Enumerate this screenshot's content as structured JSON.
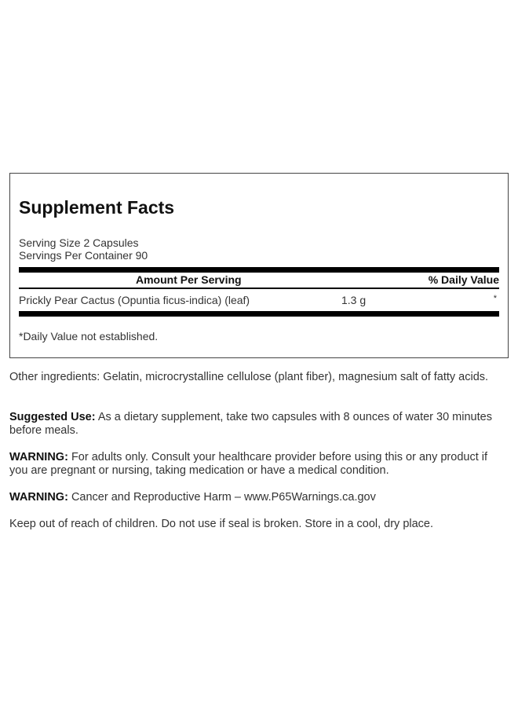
{
  "facts": {
    "title": "Supplement Facts",
    "serving_size": "Serving Size 2 Capsules",
    "servings_per_container": "Servings Per Container 90",
    "col_amount": "Amount Per Serving",
    "col_dv": "% Daily Value",
    "rows": [
      {
        "name": "Prickly Pear Cactus (Opuntia ficus-indica) (leaf)",
        "amount": "1.3 g",
        "dv": "*"
      }
    ],
    "footnote": "*Daily Value not established."
  },
  "info": {
    "other_ingredients": "Other ingredients: Gelatin, microcrystalline cellulose (plant fiber), magnesium salt of fatty acids.",
    "suggested_label": "Suggested Use:",
    "suggested_text": " As a dietary supplement, take two capsules with 8 ounces of water 30 minutes before meals.",
    "warning1_label": "WARNING:",
    "warning1_text": " For adults only. Consult your healthcare provider before using this or any product if you are pregnant or nursing, taking medication or have a medical condition.",
    "warning2_label": "WARNING:",
    "warning2_text": " Cancer and Reproductive Harm – www.P65Warnings.ca.gov",
    "storage": "Keep out of reach of children. Do not use if seal is broken. Store in a cool, dry place."
  }
}
